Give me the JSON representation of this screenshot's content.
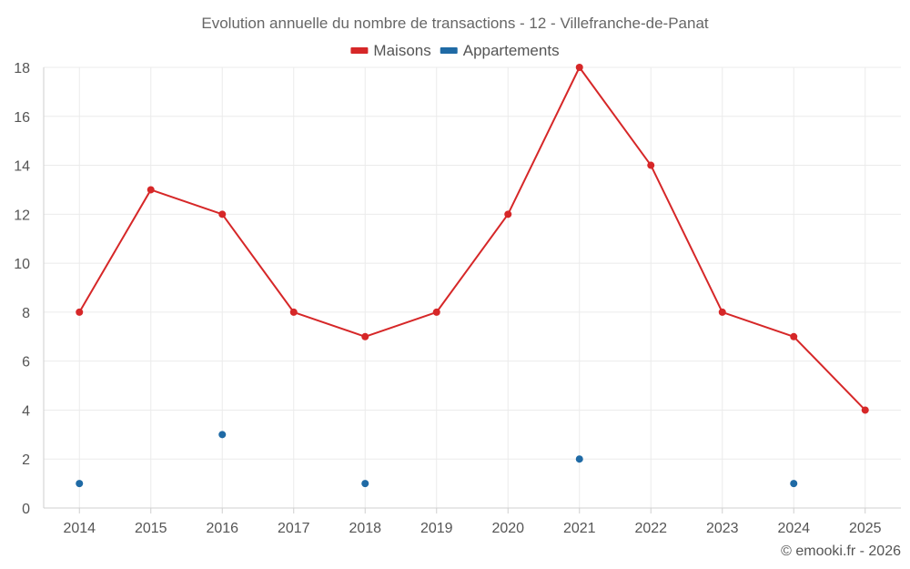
{
  "chart_data": {
    "type": "line",
    "title": "Evolution annuelle du nombre de transactions - 12 - Villefranche-de-Panat",
    "categories": [
      "2014",
      "2015",
      "2016",
      "2017",
      "2018",
      "2019",
      "2020",
      "2021",
      "2022",
      "2023",
      "2024",
      "2025"
    ],
    "series": [
      {
        "name": "Maisons",
        "color": "#d62728",
        "style": "line",
        "values": [
          8,
          13,
          12,
          8,
          7,
          8,
          12,
          18,
          14,
          8,
          7,
          4
        ]
      },
      {
        "name": "Appartements",
        "color": "#1f6aa5",
        "style": "points",
        "values": [
          1,
          null,
          3,
          null,
          1,
          null,
          null,
          2,
          null,
          null,
          1,
          null
        ]
      }
    ],
    "ylim": [
      0,
      18
    ],
    "yticks": [
      0,
      2,
      4,
      6,
      8,
      10,
      12,
      14,
      16,
      18
    ],
    "xlabel": "",
    "ylabel": "",
    "grid": true,
    "legend_position": "top-center"
  },
  "credit": "© emooki.fr - 2026"
}
